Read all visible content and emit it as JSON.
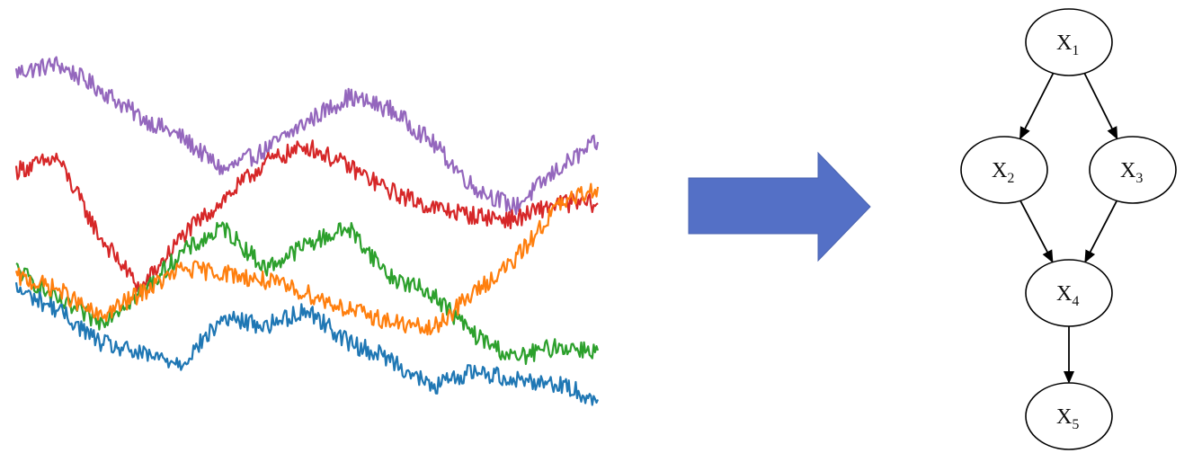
{
  "chart_data": {
    "type": "line",
    "title": "",
    "xlabel": "",
    "ylabel": "",
    "grid": false,
    "legend": "none",
    "x_range": [
      0,
      1
    ],
    "y_range": [
      0,
      1
    ],
    "series": [
      {
        "color": "#9467bd",
        "values": [
          0.9,
          0.92,
          0.86,
          0.79,
          0.74,
          0.66,
          0.71,
          0.78,
          0.84,
          0.81,
          0.73,
          0.62,
          0.57,
          0.66,
          0.73
        ]
      },
      {
        "color": "#d62728",
        "values": [
          0.66,
          0.69,
          0.5,
          0.37,
          0.5,
          0.59,
          0.68,
          0.72,
          0.67,
          0.61,
          0.57,
          0.55,
          0.54,
          0.58,
          0.58
        ]
      },
      {
        "color": "#2ca02c",
        "values": [
          0.42,
          0.34,
          0.29,
          0.36,
          0.46,
          0.52,
          0.42,
          0.48,
          0.52,
          0.4,
          0.36,
          0.26,
          0.2,
          0.23,
          0.22
        ]
      },
      {
        "color": "#ff7f0e",
        "values": [
          0.4,
          0.37,
          0.3,
          0.36,
          0.42,
          0.41,
          0.39,
          0.36,
          0.32,
          0.29,
          0.27,
          0.36,
          0.44,
          0.57,
          0.62
        ]
      },
      {
        "color": "#1f77b4",
        "values": [
          0.37,
          0.32,
          0.24,
          0.21,
          0.19,
          0.3,
          0.28,
          0.32,
          0.24,
          0.2,
          0.13,
          0.17,
          0.15,
          0.14,
          0.1
        ]
      }
    ]
  },
  "arrow": {
    "color": "#5470c6",
    "icon": "right-arrow-icon"
  },
  "diagram": {
    "nodes": [
      {
        "id": "x1",
        "letter": "X",
        "sub": "1"
      },
      {
        "id": "x2",
        "letter": "X",
        "sub": "2"
      },
      {
        "id": "x3",
        "letter": "X",
        "sub": "3"
      },
      {
        "id": "x4",
        "letter": "X",
        "sub": "4"
      },
      {
        "id": "x5",
        "letter": "X",
        "sub": "5"
      }
    ],
    "edges": [
      {
        "from": "x1",
        "to": "x2"
      },
      {
        "from": "x1",
        "to": "x3"
      },
      {
        "from": "x2",
        "to": "x4"
      },
      {
        "from": "x3",
        "to": "x4"
      },
      {
        "from": "x4",
        "to": "x5"
      }
    ]
  }
}
